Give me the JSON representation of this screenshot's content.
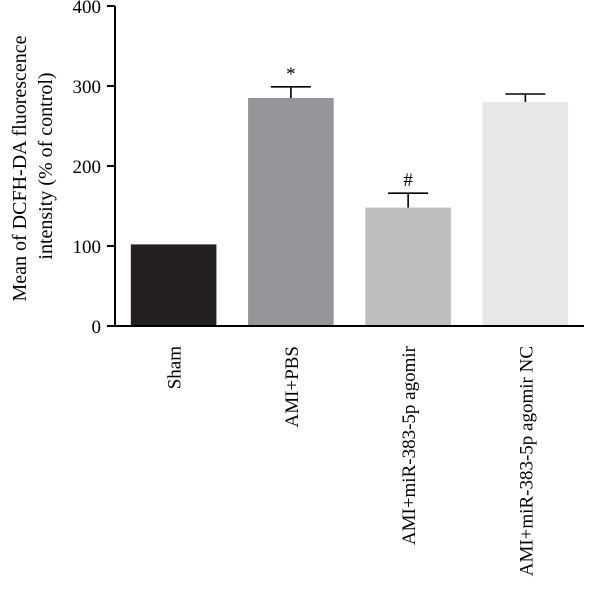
{
  "chart_data": {
    "type": "bar",
    "title": "",
    "ylabel_line1": "Mean of DCFH-DA fluorescence",
    "ylabel_line2": "intensity (% of control)",
    "xlabel": "",
    "ylim": [
      0,
      400
    ],
    "yticks": [
      0,
      100,
      200,
      300,
      400
    ],
    "categories": [
      "Sham",
      "AMI+PBS",
      "AMI+miR-383-5p agomir",
      "AMI+miR-383-5p agomir NC"
    ],
    "values": [
      102,
      285,
      148,
      280
    ],
    "errors": [
      0,
      14,
      18,
      10
    ],
    "annotations": [
      "",
      "*",
      "#",
      ""
    ],
    "colors": [
      "#231f20",
      "#939598",
      "#bcbec0",
      "#e6e7e8"
    ],
    "grid": false,
    "legend": "none"
  }
}
